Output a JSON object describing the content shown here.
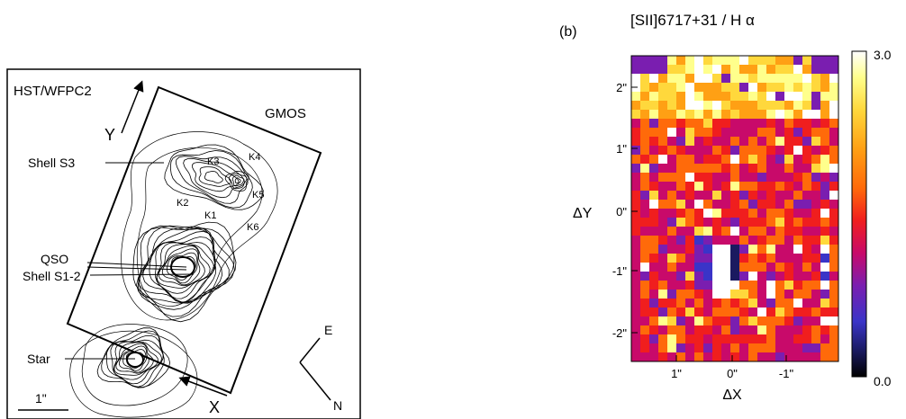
{
  "left_panel": {
    "instrument_label": "HST/WFPC2",
    "gmos_label": "GMOS",
    "y_axis_label": "Y",
    "x_axis_label": "X",
    "compass_e": "E",
    "compass_n": "N",
    "scale_label": "1\"",
    "knots": [
      "K1",
      "K2",
      "K3",
      "K4",
      "K5",
      "K6"
    ],
    "annotations": {
      "shell_s3": "Shell S3",
      "qso": "QSO",
      "shell_s12": "Shell S1-2",
      "star": "Star"
    }
  },
  "right_panel": {
    "panel_label": "(b)",
    "title": "[SII]6717+31 / H α",
    "colorbar": {
      "max_label": "3.0",
      "min_label": "0.0",
      "colors": [
        "#000000",
        "#1a1a60",
        "#3a34c8",
        "#7a1eb0",
        "#c80a6a",
        "#f01e1e",
        "#ff6a0a",
        "#ffa014",
        "#ffd83c",
        "#ffff8c",
        "#ffffff"
      ]
    },
    "chart_data": {
      "type": "heatmap",
      "title": "[SII]6717+31 / H α",
      "xlabel": "ΔX",
      "ylabel": "ΔY",
      "x_ticks": [
        "1\"",
        "0\"",
        "-1\""
      ],
      "y_ticks": [
        "2\"",
        "1\"",
        "0\"",
        "-1\"",
        "-2\""
      ],
      "value_range": [
        0.0,
        3.0
      ]
    }
  }
}
